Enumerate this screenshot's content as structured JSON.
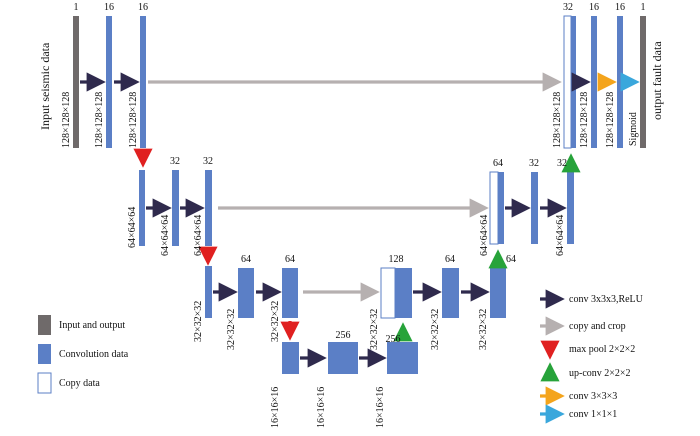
{
  "colors": {
    "io": "#6f6a6a",
    "conv": "#5b7fc6",
    "copy_border": "#5b7fc6",
    "arrow_conv": "#2f2a4d",
    "arrow_copy": "#b6b0b0",
    "arrow_pool": "#e02020",
    "arrow_up": "#27a33a",
    "arrow_conv3": "#f4a41c",
    "arrow_conv1": "#3aa7dc"
  },
  "labels": {
    "input": "Input seismic data",
    "output": "output fault data",
    "sigmoid": "Sigmoid"
  },
  "channels": [
    "1",
    "16",
    "16",
    "32",
    "32",
    "64",
    "64",
    "256",
    "256",
    "128",
    "64",
    "64",
    "32",
    "32",
    "32",
    "16",
    "16",
    "1"
  ],
  "dims": {
    "d128": "128×128×128",
    "d64": "64×64×64",
    "d32": "32×32×32",
    "d16": "16×16×16"
  },
  "legend": {
    "io": "Input and output",
    "conv": "Convolution data",
    "copy": "Copy data",
    "conv3relu": "conv 3x3x3,ReLU",
    "copycrop": "copy and crop",
    "maxpool": "max pool 2×2×2",
    "upconv": "up-conv 2×2×2",
    "conv333": "conv 3×3×3",
    "conv111": "conv 1×1×1"
  }
}
